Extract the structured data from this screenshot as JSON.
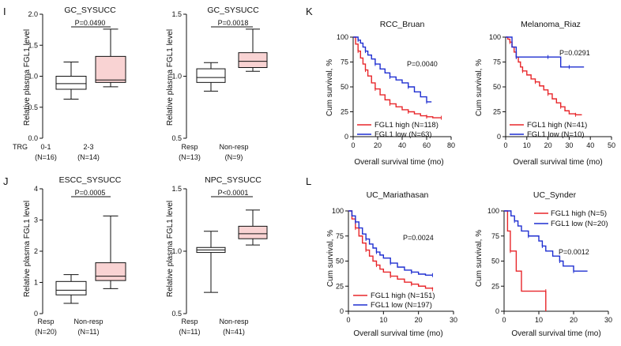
{
  "panel_letters": [
    "I",
    "J",
    "K",
    "L"
  ],
  "chart_data": [
    {
      "type": "box",
      "panel": "I",
      "title": "GC_SYSUCC",
      "ylabel": "Relative plasma FGL1 level",
      "ylim": [
        0,
        2.0
      ],
      "yticks": [
        "0.0",
        "0.5",
        "1.0",
        "1.5",
        "2.0"
      ],
      "row_label": "TRG",
      "categories": [
        "0-1",
        "2-3"
      ],
      "n_labels": [
        "(N=16)",
        "(N=14)"
      ],
      "pvalue": "P=0.0490",
      "box_colors": [
        "#ffffff",
        "#f9d3d3"
      ],
      "boxes": [
        {
          "min": 0.63,
          "q1": 0.79,
          "median": 0.88,
          "q3": 1.0,
          "max": 1.23
        },
        {
          "min": 0.83,
          "q1": 0.9,
          "median": 0.94,
          "q3": 1.32,
          "max": 1.76
        }
      ]
    },
    {
      "type": "box",
      "panel": "I",
      "title": "GC_SYSUCC",
      "ylabel": "Relative plasma FGL1 level",
      "ylim": [
        0.5,
        1.5
      ],
      "yticks": [
        "0.5",
        "1.0",
        "1.5"
      ],
      "categories": [
        "Resp",
        "Non-resp"
      ],
      "n_labels": [
        "(N=13)",
        "(N=9)"
      ],
      "pvalue": "P=0.0018",
      "box_colors": [
        "#ffffff",
        "#f9d3d3"
      ],
      "boxes": [
        {
          "min": 0.88,
          "q1": 0.95,
          "median": 0.99,
          "q3": 1.06,
          "max": 1.11
        },
        {
          "min": 1.04,
          "q1": 1.07,
          "median": 1.12,
          "q3": 1.19,
          "max": 1.38
        }
      ]
    },
    {
      "type": "box",
      "panel": "J",
      "title": "ESCC_SYSUCC",
      "ylabel": "Relative plasma FGL1 level",
      "ylim": [
        0,
        4
      ],
      "yticks": [
        "0",
        "1",
        "2",
        "3",
        "4"
      ],
      "categories": [
        "Resp",
        "Non-resp"
      ],
      "n_labels": [
        "(N=20)",
        "(N=11)"
      ],
      "pvalue": "P=0.0005",
      "box_colors": [
        "#ffffff",
        "#f9d3d3"
      ],
      "boxes": [
        {
          "min": 0.33,
          "q1": 0.6,
          "median": 0.75,
          "q3": 1.03,
          "max": 1.25
        },
        {
          "min": 0.8,
          "q1": 1.06,
          "median": 1.2,
          "q3": 1.63,
          "max": 3.13
        }
      ]
    },
    {
      "type": "box",
      "panel": "J",
      "title": "NPC_SYSUCC",
      "ylabel": "Relative plasma FGL1 level",
      "ylim": [
        0.5,
        1.5
      ],
      "yticks": [
        "0.5",
        "1.0",
        "1.5"
      ],
      "categories": [
        "Resp",
        "Non-resp"
      ],
      "n_labels": [
        "(N=11)",
        "(N=41)"
      ],
      "pvalue": "P<0.0001",
      "box_colors": [
        "#ffffff",
        "#f9d3d3"
      ],
      "boxes": [
        {
          "min": 0.67,
          "q1": 0.99,
          "median": 1.01,
          "q3": 1.03,
          "max": 1.16
        },
        {
          "min": 1.05,
          "q1": 1.1,
          "median": 1.14,
          "q3": 1.2,
          "max": 1.33
        }
      ]
    },
    {
      "type": "line",
      "panel": "K",
      "title": "RCC_Bruan",
      "xlabel": "Overall survival time (mo)",
      "ylabel": "Cum survival, %",
      "xlim": [
        0,
        80
      ],
      "ylim": [
        0,
        100
      ],
      "xticks": [
        "0",
        "20",
        "40",
        "60",
        "80"
      ],
      "yticks": [
        "0",
        "25",
        "50",
        "75",
        "100"
      ],
      "pvalue": "P=0.0040",
      "series": [
        {
          "name": "FGL1 high (N=118)",
          "color": "#e8262a",
          "x": [
            0,
            2,
            4,
            6,
            8,
            10,
            12,
            15,
            18,
            22,
            26,
            30,
            35,
            40,
            45,
            50,
            55,
            60,
            65,
            70,
            72
          ],
          "y": [
            100,
            93,
            86,
            79,
            73,
            67,
            61,
            54,
            48,
            42,
            37,
            33,
            30,
            27,
            25,
            23,
            21,
            20,
            19,
            19,
            19
          ]
        },
        {
          "name": "FGL1 low (N=63)",
          "color": "#1f2fd1",
          "x": [
            0,
            2,
            4,
            6,
            8,
            10,
            12,
            15,
            18,
            22,
            26,
            30,
            35,
            40,
            45,
            50,
            55,
            60,
            64
          ],
          "y": [
            100,
            100,
            97,
            94,
            90,
            86,
            82,
            78,
            73,
            68,
            64,
            60,
            57,
            54,
            50,
            45,
            40,
            35,
            35
          ]
        }
      ]
    },
    {
      "type": "line",
      "panel": "K",
      "title": "Melanoma_Riaz",
      "xlabel": "Overall survival time (mo)",
      "ylabel": "Cum survival, %",
      "xlim": [
        0,
        50
      ],
      "ylim": [
        0,
        100
      ],
      "xticks": [
        "0",
        "10",
        "20",
        "30",
        "40",
        "50"
      ],
      "yticks": [
        "0",
        "25",
        "50",
        "75",
        "100"
      ],
      "pvalue": "P=0.0291",
      "series": [
        {
          "name": "FGL1 high (N=41)",
          "color": "#e8262a",
          "x": [
            0,
            1,
            2,
            3,
            4,
            5,
            6,
            7,
            8,
            10,
            12,
            14,
            16,
            18,
            20,
            22,
            24,
            26,
            28,
            30,
            33,
            36
          ],
          "y": [
            100,
            98,
            95,
            90,
            85,
            80,
            75,
            70,
            66,
            62,
            58,
            55,
            51,
            47,
            43,
            38,
            34,
            30,
            26,
            23,
            22,
            22
          ]
        },
        {
          "name": "FGL1 low (N=10)",
          "color": "#1f2fd1",
          "x": [
            0,
            3,
            5,
            8,
            12,
            20,
            25,
            26,
            30,
            35,
            37
          ],
          "y": [
            100,
            90,
            80,
            80,
            80,
            80,
            80,
            70,
            70,
            70,
            70
          ]
        }
      ]
    },
    {
      "type": "line",
      "panel": "L",
      "title": "UC_Mariathasan",
      "xlabel": "Overall survival time (mo)",
      "ylabel": "Cum survival, %",
      "xlim": [
        0,
        30
      ],
      "ylim": [
        0,
        100
      ],
      "xticks": [
        "0",
        "10",
        "20",
        "30"
      ],
      "yticks": [
        "0",
        "25",
        "50",
        "75",
        "100"
      ],
      "pvalue": "P=0.0024",
      "series": [
        {
          "name": "FGL1 high (N=151)",
          "color": "#e8262a",
          "x": [
            0,
            1,
            2,
            3,
            4,
            5,
            6,
            7,
            8,
            9,
            10,
            12,
            14,
            16,
            18,
            20,
            22,
            24
          ],
          "y": [
            100,
            92,
            83,
            75,
            68,
            61,
            55,
            50,
            46,
            42,
            39,
            35,
            32,
            29,
            27,
            25,
            23,
            22
          ]
        },
        {
          "name": "FGL1 low (N=197)",
          "color": "#1f2fd1",
          "x": [
            0,
            1,
            2,
            3,
            4,
            5,
            6,
            7,
            8,
            9,
            10,
            12,
            14,
            16,
            18,
            20,
            22,
            24
          ],
          "y": [
            100,
            95,
            89,
            83,
            77,
            72,
            67,
            63,
            59,
            56,
            53,
            48,
            44,
            41,
            39,
            37,
            36,
            36
          ]
        }
      ]
    },
    {
      "type": "line",
      "panel": "L",
      "title": "UC_Synder",
      "xlabel": "Overall survival time (mo)",
      "ylabel": "Cum survival, %",
      "xlim": [
        0,
        30
      ],
      "ylim": [
        0,
        100
      ],
      "xticks": [
        "0",
        "10",
        "20",
        "30"
      ],
      "yticks": [
        "0",
        "25",
        "50",
        "75",
        "100"
      ],
      "pvalue": "P=0.0012",
      "series": [
        {
          "name": "FGL1 high (N=5)",
          "color": "#e8262a",
          "x": [
            0,
            1,
            1.8,
            3.5,
            5,
            12,
            12
          ],
          "y": [
            100,
            80,
            60,
            40,
            20,
            20,
            0
          ]
        },
        {
          "name": "FGL1 low (N=20)",
          "color": "#1f2fd1",
          "x": [
            0,
            2,
            3,
            4,
            5,
            7,
            8,
            10,
            11,
            12,
            14,
            16,
            17,
            18,
            20,
            22,
            24
          ],
          "y": [
            100,
            95,
            90,
            85,
            80,
            75,
            75,
            70,
            65,
            60,
            55,
            50,
            45,
            45,
            40,
            40,
            40
          ]
        }
      ]
    }
  ]
}
